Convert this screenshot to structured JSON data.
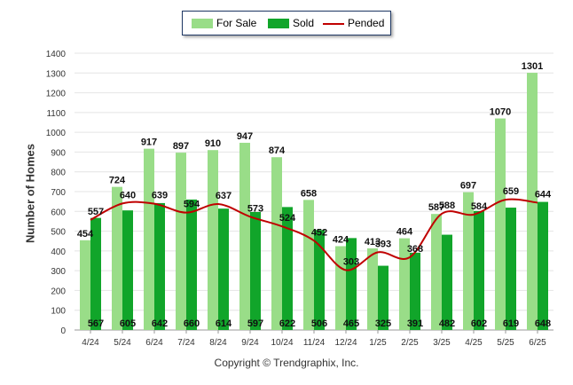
{
  "chart_data": {
    "type": "bar",
    "title": "",
    "xlabel": "",
    "ylabel": "Number of Homes",
    "ylim": [
      0,
      1400
    ],
    "yticks": [
      0,
      100,
      200,
      300,
      400,
      500,
      600,
      700,
      800,
      900,
      1000,
      1100,
      1200,
      1300,
      1400
    ],
    "grid": true,
    "legend_position": "top",
    "categories": [
      "4/24",
      "5/24",
      "6/24",
      "7/24",
      "8/24",
      "9/24",
      "10/24",
      "11/24",
      "12/24",
      "1/25",
      "2/25",
      "3/25",
      "4/25",
      "5/25",
      "6/25"
    ],
    "series": [
      {
        "name": "For Sale",
        "type": "bar",
        "color": "#99dd88",
        "values": [
          454,
          724,
          917,
          897,
          910,
          947,
          874,
          658,
          424,
          413,
          464,
          587,
          697,
          1070,
          1301
        ]
      },
      {
        "name": "Sold",
        "type": "bar",
        "color": "#11a52a",
        "values": [
          567,
          605,
          642,
          660,
          614,
          597,
          622,
          506,
          465,
          325,
          391,
          482,
          602,
          619,
          648
        ]
      },
      {
        "name": "Pended",
        "type": "line",
        "color": "#c00000",
        "values": [
          557,
          640,
          639,
          594,
          637,
          573,
          524,
          452,
          303,
          393,
          368,
          588,
          584,
          659,
          644
        ]
      }
    ]
  },
  "footer": {
    "copyright": "Copyright © Trendgraphix, Inc."
  }
}
